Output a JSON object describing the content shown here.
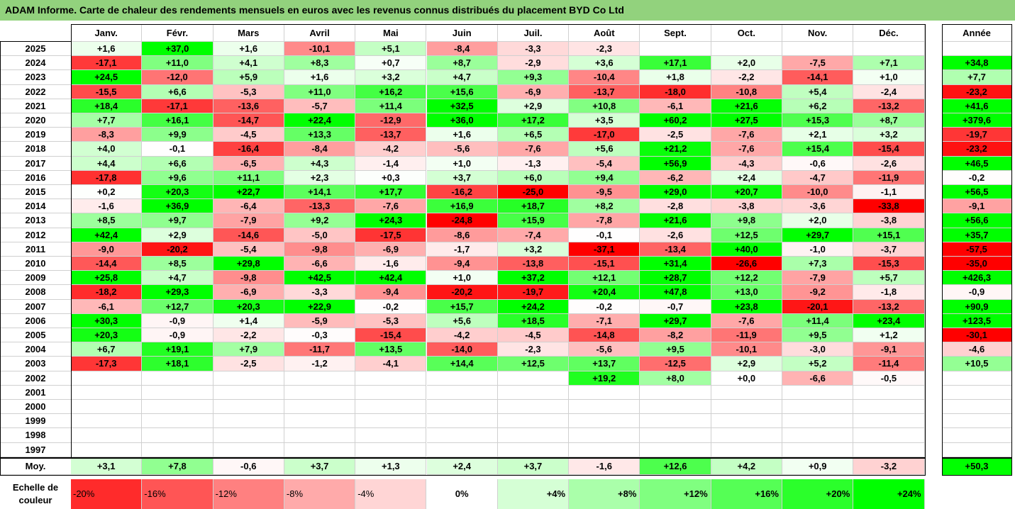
{
  "title": "ADAM Informe. Carte de chaleur des rendements mensuels en euros avec les revenus connus distribués du placement BYD Co Ltd",
  "months": [
    "Janv.",
    "Févr.",
    "Mars",
    "Avril",
    "Mai",
    "Juin",
    "Juil.",
    "Août",
    "Sept.",
    "Oct.",
    "Nov.",
    "Déc."
  ],
  "year_header": "Année",
  "avg_label": "Moy.",
  "rows": [
    {
      "year": "2025",
      "m": [
        "+1,6",
        "+37,0",
        "+1,6",
        "-10,1",
        "+5,1",
        "-8,4",
        "-3,3",
        "-2,3",
        "",
        "",
        "",
        ""
      ],
      "y": ""
    },
    {
      "year": "2024",
      "m": [
        "-17,1",
        "+11,0",
        "+4,1",
        "+8,3",
        "+0,7",
        "+8,7",
        "-2,9",
        "+3,6",
        "+17,1",
        "+2,0",
        "-7,5",
        "+7,1"
      ],
      "y": "+34,8"
    },
    {
      "year": "2023",
      "m": [
        "+24,5",
        "-12,0",
        "+5,9",
        "+1,6",
        "+3,2",
        "+4,7",
        "+9,3",
        "-10,4",
        "+1,8",
        "-2,2",
        "-14,1",
        "+1,0"
      ],
      "y": "+7,7"
    },
    {
      "year": "2022",
      "m": [
        "-15,5",
        "+6,6",
        "-5,3",
        "+11,0",
        "+16,2",
        "+15,6",
        "-6,9",
        "-13,7",
        "-18,0",
        "-10,8",
        "+5,4",
        "-2,4"
      ],
      "y": "-23,2"
    },
    {
      "year": "2021",
      "m": [
        "+18,4",
        "-17,1",
        "-13,6",
        "-5,7",
        "+11,4",
        "+32,5",
        "+2,9",
        "+10,8",
        "-6,1",
        "+21,6",
        "+6,2",
        "-13,2"
      ],
      "y": "+41,6"
    },
    {
      "year": "2020",
      "m": [
        "+7,7",
        "+16,1",
        "-14,7",
        "+22,4",
        "-12,9",
        "+36,0",
        "+17,2",
        "+3,5",
        "+60,2",
        "+27,5",
        "+15,3",
        "+8,7"
      ],
      "y": "+379,6"
    },
    {
      "year": "2019",
      "m": [
        "-8,3",
        "+9,9",
        "-4,5",
        "+13,3",
        "-13,7",
        "+1,6",
        "+6,5",
        "-17,0",
        "-2,5",
        "-7,6",
        "+2,1",
        "+3,2"
      ],
      "y": "-19,7"
    },
    {
      "year": "2018",
      "m": [
        "+4,0",
        "-0,1",
        "-16,4",
        "-8,4",
        "-4,2",
        "-5,6",
        "-7,6",
        "+5,6",
        "+21,2",
        "-7,6",
        "+15,4",
        "-15,4"
      ],
      "y": "-23,2"
    },
    {
      "year": "2017",
      "m": [
        "+4,4",
        "+6,6",
        "-6,5",
        "+4,3",
        "-1,4",
        "+1,0",
        "-1,3",
        "-5,4",
        "+56,9",
        "-4,3",
        "-0,6",
        "-2,6"
      ],
      "y": "+46,5"
    },
    {
      "year": "2016",
      "m": [
        "-17,8",
        "+9,6",
        "+11,1",
        "+2,3",
        "+0,3",
        "+3,7",
        "+6,0",
        "+9,4",
        "-6,2",
        "+2,4",
        "-4,7",
        "-11,9"
      ],
      "y": "-0,2"
    },
    {
      "year": "2015",
      "m": [
        "+0,2",
        "+20,3",
        "+22,7",
        "+14,1",
        "+17,7",
        "-16,2",
        "-25,0",
        "-9,5",
        "+29,0",
        "+20,7",
        "-10,0",
        "-1,1"
      ],
      "y": "+56,5"
    },
    {
      "year": "2014",
      "m": [
        "-1,6",
        "+36,9",
        "-6,4",
        "-13,3",
        "-7,6",
        "+16,9",
        "+18,7",
        "+8,2",
        "-2,8",
        "-3,8",
        "-3,6",
        "-33,8"
      ],
      "y": "-9,1"
    },
    {
      "year": "2013",
      "m": [
        "+8,5",
        "+9,7",
        "-7,9",
        "+9,2",
        "+24,3",
        "-24,8",
        "+15,9",
        "-7,8",
        "+21,6",
        "+9,8",
        "+2,0",
        "-3,8"
      ],
      "y": "+56,6"
    },
    {
      "year": "2012",
      "m": [
        "+42,4",
        "+2,9",
        "-14,6",
        "-5,0",
        "-17,5",
        "-8,6",
        "-7,4",
        "-0,1",
        "-2,6",
        "+12,5",
        "+29,7",
        "+15,1"
      ],
      "y": "+35,7"
    },
    {
      "year": "2011",
      "m": [
        "-9,0",
        "-20,2",
        "-5,4",
        "-9,8",
        "-6,9",
        "-1,7",
        "+3,2",
        "-37,1",
        "-13,4",
        "+40,0",
        "-1,0",
        "-3,7"
      ],
      "y": "-57,5"
    },
    {
      "year": "2010",
      "m": [
        "-14,4",
        "+8,5",
        "+29,8",
        "-6,6",
        "-1,6",
        "-9,4",
        "-13,8",
        "-15,1",
        "+31,4",
        "-26,6",
        "+7,3",
        "-15,3"
      ],
      "y": "-35,0"
    },
    {
      "year": "2009",
      "m": [
        "+25,8",
        "+4,7",
        "-9,8",
        "+42,5",
        "+42,4",
        "+1,0",
        "+37,2",
        "+12,1",
        "+28,7",
        "+12,2",
        "-7,9",
        "+5,7"
      ],
      "y": "+426,3"
    },
    {
      "year": "2008",
      "m": [
        "-18,2",
        "+29,3",
        "-6,9",
        "-3,3",
        "-9,4",
        "-20,2",
        "-19,7",
        "+20,4",
        "+47,8",
        "+13,0",
        "-9,2",
        "-1,8"
      ],
      "y": "-0,9"
    },
    {
      "year": "2007",
      "m": [
        "-6,1",
        "+12,7",
        "+20,3",
        "+22,9",
        "-0,2",
        "+15,7",
        "+24,2",
        "-0,2",
        "-0,7",
        "+23,8",
        "-20,1",
        "-13,2"
      ],
      "y": "+90,9"
    },
    {
      "year": "2006",
      "m": [
        "+30,3",
        "-0,9",
        "+1,4",
        "-5,9",
        "-5,3",
        "+5,6",
        "+18,5",
        "-7,1",
        "+29,7",
        "-7,6",
        "+11,4",
        "+23,4"
      ],
      "y": "+123,5"
    },
    {
      "year": "2005",
      "m": [
        "+20,3",
        "-0,9",
        "-2,2",
        "-0,3",
        "-15,4",
        "-4,2",
        "-4,5",
        "-14,8",
        "-8,2",
        "-11,9",
        "+9,5",
        "+1,2"
      ],
      "y": "-30,1"
    },
    {
      "year": "2004",
      "m": [
        "+6,7",
        "+19,1",
        "+7,9",
        "-11,7",
        "+13,5",
        "-14,0",
        "-2,3",
        "-5,6",
        "+9,5",
        "-10,1",
        "-3,0",
        "-9,1"
      ],
      "y": "-4,6"
    },
    {
      "year": "2003",
      "m": [
        "-17,3",
        "+18,1",
        "-2,5",
        "-1,2",
        "-4,1",
        "+14,4",
        "+12,5",
        "+13,7",
        "-12,5",
        "+2,9",
        "+5,2",
        "-11,4"
      ],
      "y": "+10,5"
    },
    {
      "year": "2002",
      "m": [
        "",
        "",
        "",
        "",
        "",
        "",
        "",
        "+19,2",
        "+8,0",
        "+0,0",
        "-6,6",
        "-0,5"
      ],
      "y": ""
    },
    {
      "year": "2001",
      "m": [
        "",
        "",
        "",
        "",
        "",
        "",
        "",
        "",
        "",
        "",
        "",
        ""
      ],
      "y": ""
    },
    {
      "year": "2000",
      "m": [
        "",
        "",
        "",
        "",
        "",
        "",
        "",
        "",
        "",
        "",
        "",
        ""
      ],
      "y": ""
    },
    {
      "year": "1999",
      "m": [
        "",
        "",
        "",
        "",
        "",
        "",
        "",
        "",
        "",
        "",
        "",
        ""
      ],
      "y": ""
    },
    {
      "year": "1998",
      "m": [
        "",
        "",
        "",
        "",
        "",
        "",
        "",
        "",
        "",
        "",
        "",
        ""
      ],
      "y": ""
    },
    {
      "year": "1997",
      "m": [
        "",
        "",
        "",
        "",
        "",
        "",
        "",
        "",
        "",
        "",
        "",
        ""
      ],
      "y": ""
    }
  ],
  "averages": {
    "m": [
      "+3,1",
      "+7,8",
      "-0,6",
      "+3,7",
      "+1,3",
      "+2,4",
      "+3,7",
      "-1,6",
      "+12,6",
      "+4,2",
      "+0,9",
      "-3,2"
    ],
    "y": "+50,3"
  },
  "scale": {
    "label_line1": "Echelle de",
    "label_line2": "couleur",
    "stops": [
      "-20%",
      "-16%",
      "-12%",
      "-8%",
      "-4%",
      "0%",
      "+4%",
      "+8%",
      "+12%",
      "+16%",
      "+20%",
      "+24%"
    ]
  }
}
